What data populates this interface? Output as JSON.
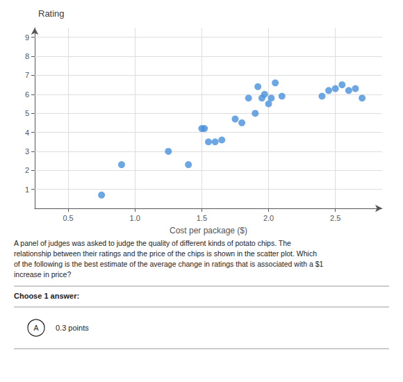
{
  "chart_data": {
    "type": "scatter",
    "title": "Rating",
    "xlabel": "Cost per package ($)",
    "x": [
      0.75,
      0.9,
      1.25,
      1.4,
      1.5,
      1.52,
      1.55,
      1.6,
      1.65,
      1.75,
      1.8,
      1.85,
      1.9,
      1.92,
      1.95,
      1.97,
      2.0,
      2.02,
      2.05,
      2.1,
      2.4,
      2.45,
      2.5,
      2.55,
      2.6,
      2.65,
      2.7
    ],
    "values": [
      0.7,
      2.3,
      3.0,
      2.3,
      4.2,
      4.2,
      3.5,
      3.5,
      3.6,
      4.7,
      4.5,
      5.8,
      5.0,
      6.4,
      5.8,
      6.0,
      5.5,
      5.8,
      6.6,
      5.9,
      5.9,
      6.2,
      6.3,
      6.5,
      6.2,
      6.3,
      5.8
    ],
    "color": "#4a90d9",
    "xlim": [
      0.25,
      2.85
    ],
    "ylim": [
      0,
      9.5
    ],
    "xticks": [
      0.5,
      {
        "value": 1.0,
        "label": "1.0"
      },
      1.5,
      {
        "value": 2.0,
        "label": "2.0"
      },
      2.5
    ],
    "yticks": [
      1,
      2,
      3,
      4,
      5,
      6,
      7,
      8,
      9
    ],
    "grid": true,
    "annotations": [
      "A panel of judges was asked to judge the quality of different kinds of potato chips. The\nrelationship between their ratings and the price of the chips is shown in the scatter plot. Which\nof the following is the best estimate of the average change in ratings that is associated with a $1\nincrease in price?",
      "Choose 1 answer:",
      "A",
      "0.3 points"
    ]
  }
}
